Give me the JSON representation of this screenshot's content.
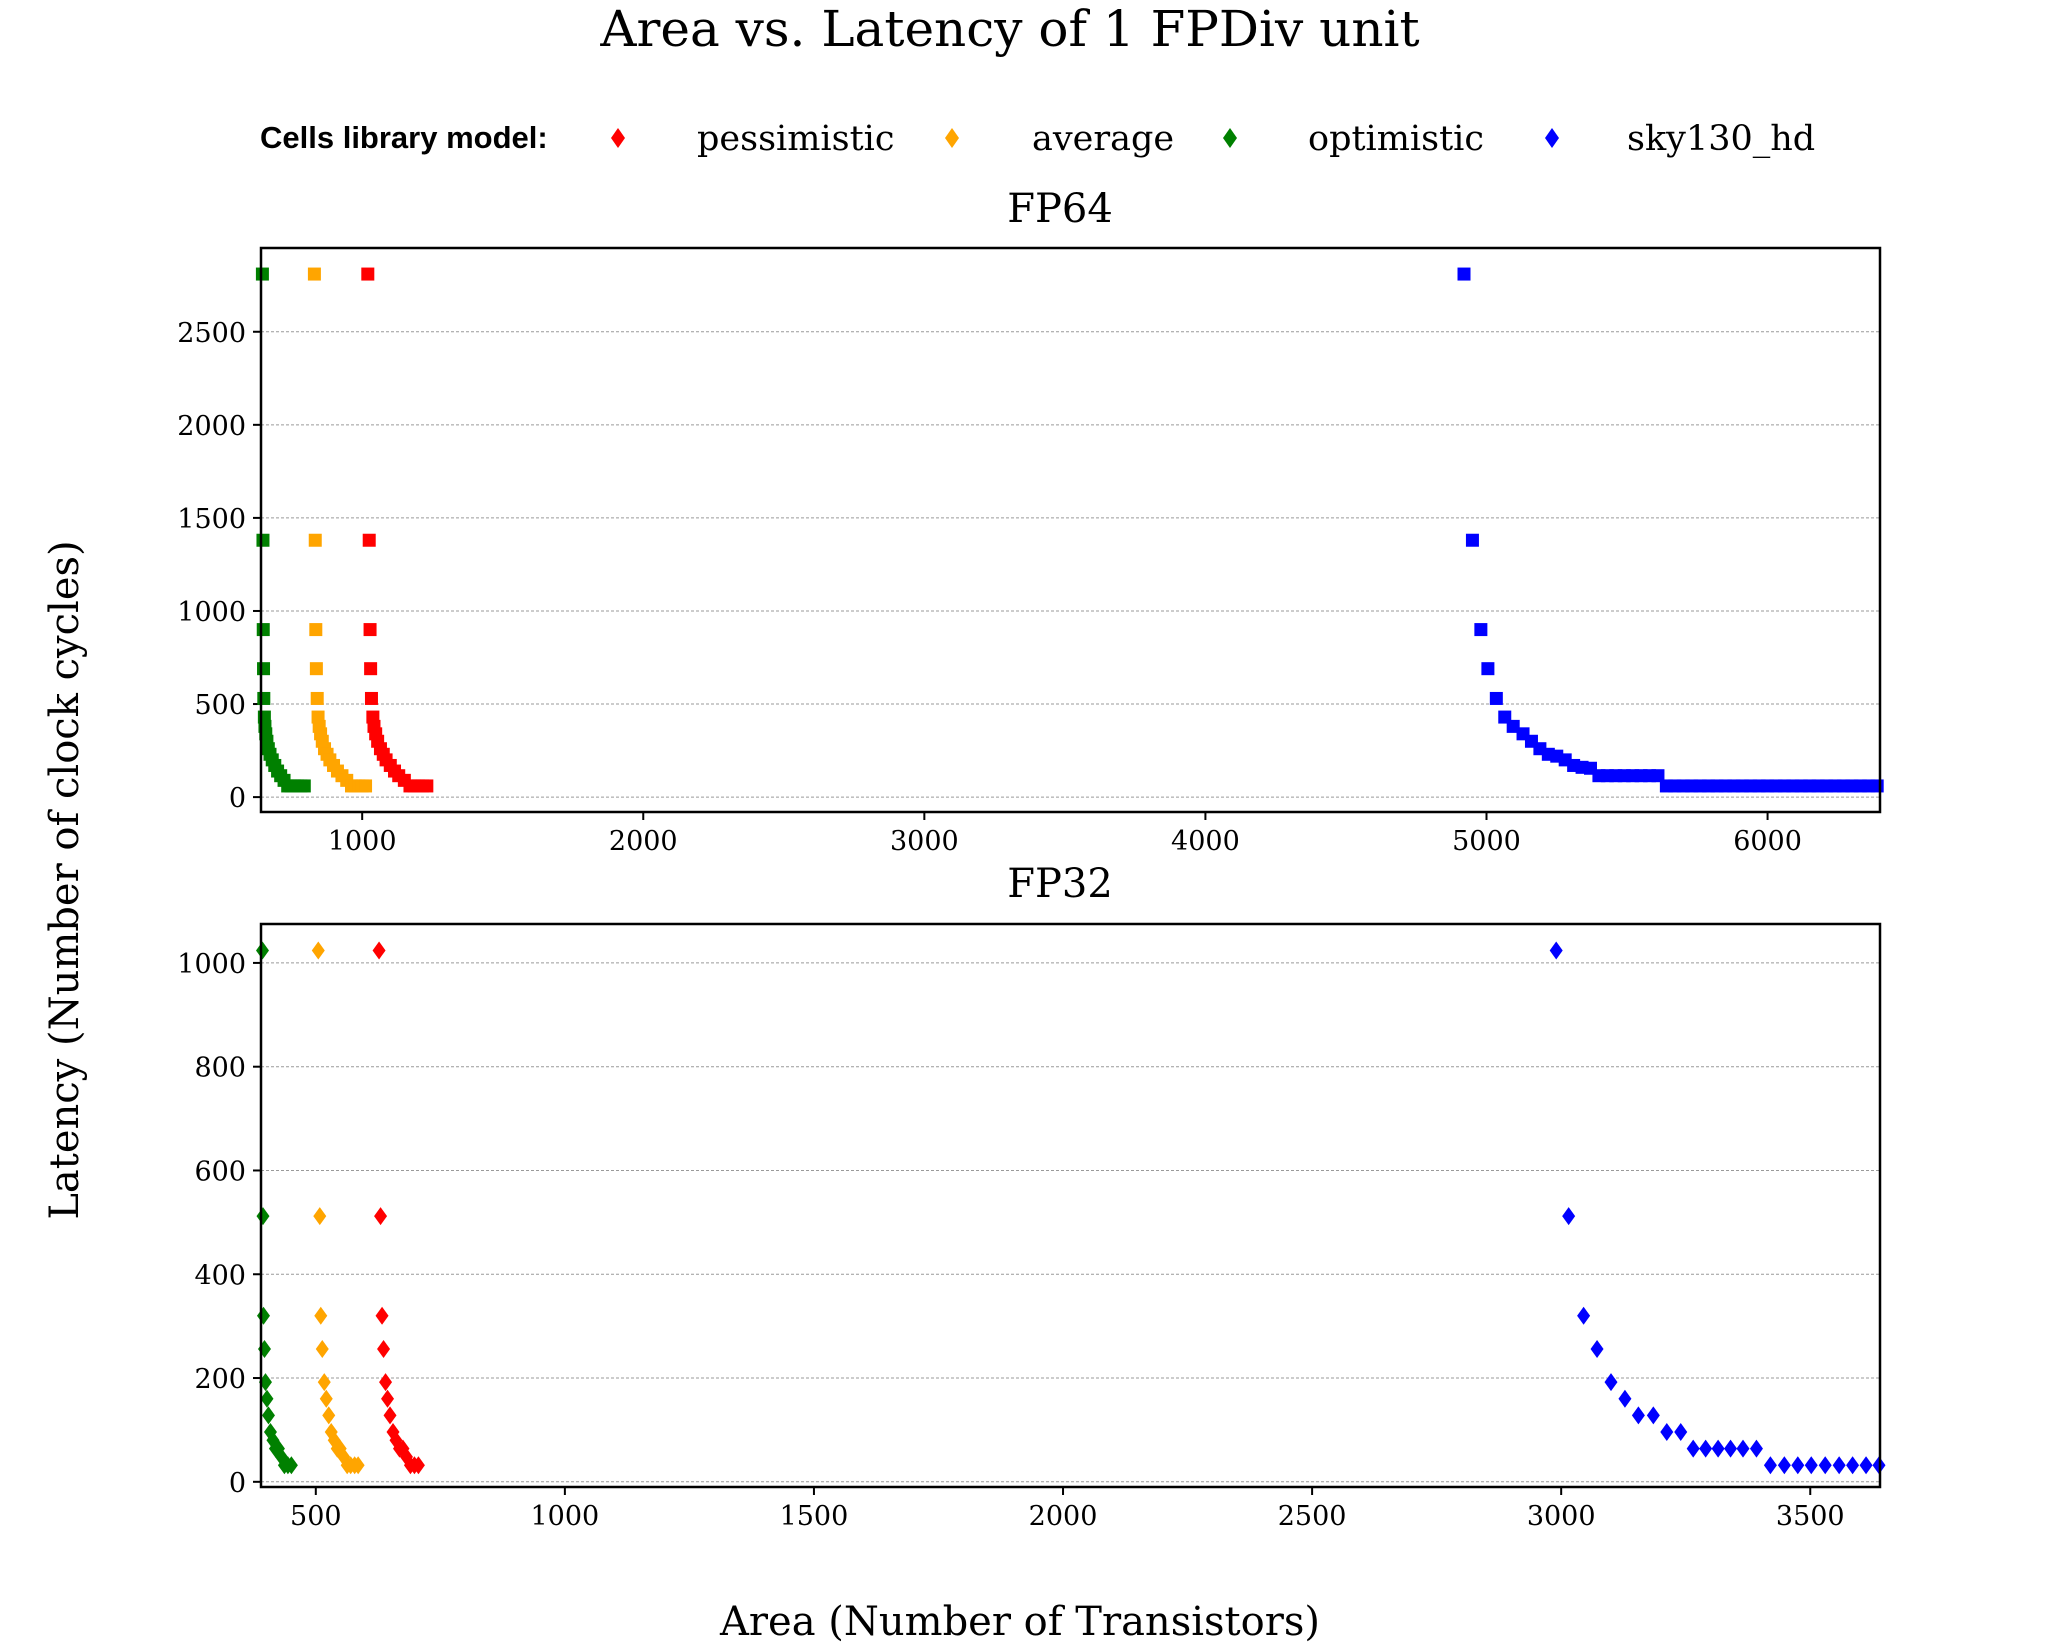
{
  "figure": {
    "title": "Area vs. Latency of 1 FPDiv unit",
    "xlabel": "Area (Number of Transistors)",
    "ylabel": "Latency (Number of clock cycles)"
  },
  "legend": {
    "title": "Cells library model:",
    "placement": "top",
    "entries": [
      {
        "name": "pessimistic",
        "color": "#ff0000"
      },
      {
        "name": "average",
        "color": "#ffa500"
      },
      {
        "name": "optimistic",
        "color": "#008000"
      },
      {
        "name": "sky130_hd",
        "color": "#0000ff"
      }
    ]
  },
  "chart_data": [
    {
      "type": "scatter",
      "title": "FP64",
      "marker": "square",
      "xlim": [
        640,
        6400
      ],
      "ylim": [
        -80,
        2950
      ],
      "xticks": [
        1000,
        2000,
        3000,
        4000,
        5000,
        6000
      ],
      "yticks": [
        0,
        500,
        1000,
        1500,
        2000,
        2500
      ],
      "grid": "y",
      "series": [
        {
          "name": "pessimistic",
          "color": "#ff0000",
          "points": [
            [
              1020,
              2810
            ],
            [
              1025,
              1380
            ],
            [
              1028,
              900
            ],
            [
              1030,
              690
            ],
            [
              1033,
              530
            ],
            [
              1038,
              430
            ],
            [
              1042,
              380
            ],
            [
              1048,
              340
            ],
            [
              1055,
              300
            ],
            [
              1065,
              260
            ],
            [
              1075,
              230
            ],
            [
              1085,
              200
            ],
            [
              1100,
              170
            ],
            [
              1115,
              140
            ],
            [
              1130,
              115
            ],
            [
              1150,
              90
            ],
            [
              1170,
              60
            ],
            [
              1185,
              60
            ],
            [
              1200,
              60
            ],
            [
              1215,
              60
            ],
            [
              1230,
              60
            ]
          ]
        },
        {
          "name": "average",
          "color": "#ffa500",
          "points": [
            [
              830,
              2810
            ],
            [
              833,
              1380
            ],
            [
              835,
              900
            ],
            [
              837,
              690
            ],
            [
              840,
              530
            ],
            [
              843,
              430
            ],
            [
              847,
              380
            ],
            [
              852,
              340
            ],
            [
              858,
              300
            ],
            [
              866,
              260
            ],
            [
              875,
              230
            ],
            [
              885,
              200
            ],
            [
              898,
              170
            ],
            [
              912,
              140
            ],
            [
              928,
              115
            ],
            [
              945,
              90
            ],
            [
              962,
              60
            ],
            [
              975,
              60
            ],
            [
              988,
              60
            ],
            [
              1000,
              60
            ],
            [
              1012,
              60
            ]
          ]
        },
        {
          "name": "optimistic",
          "color": "#008000",
          "points": [
            [
              645,
              2810
            ],
            [
              647,
              1380
            ],
            [
              648,
              900
            ],
            [
              649,
              690
            ],
            [
              650,
              530
            ],
            [
              652,
              430
            ],
            [
              654,
              380
            ],
            [
              657,
              340
            ],
            [
              661,
              300
            ],
            [
              666,
              260
            ],
            [
              672,
              230
            ],
            [
              680,
              200
            ],
            [
              689,
              170
            ],
            [
              699,
              140
            ],
            [
              710,
              115
            ],
            [
              722,
              90
            ],
            [
              735,
              60
            ],
            [
              747,
              60
            ],
            [
              759,
              60
            ],
            [
              770,
              60
            ],
            [
              782,
              60
            ],
            [
              794,
              60
            ]
          ]
        },
        {
          "name": "sky130_hd",
          "color": "#0000ff",
          "points": [
            [
              4920,
              2810
            ],
            [
              4950,
              1380
            ],
            [
              4980,
              900
            ],
            [
              5005,
              690
            ],
            [
              5035,
              530
            ],
            [
              5065,
              430
            ],
            [
              5095,
              380
            ],
            [
              5130,
              340
            ],
            [
              5160,
              300
            ],
            [
              5190,
              260
            ],
            [
              5220,
              230
            ],
            [
              5250,
              220
            ],
            [
              5280,
              200
            ],
            [
              5310,
              170
            ],
            [
              5340,
              160
            ],
            [
              5370,
              155
            ],
            [
              5400,
              115
            ],
            [
              5430,
              115
            ],
            [
              5460,
              115
            ],
            [
              5490,
              115
            ],
            [
              5520,
              115
            ],
            [
              5550,
              115
            ],
            [
              5580,
              115
            ],
            [
              5610,
              115
            ],
            [
              5640,
              60
            ],
            [
              5670,
              60
            ],
            [
              5700,
              60
            ],
            [
              5730,
              60
            ],
            [
              5760,
              60
            ],
            [
              5790,
              60
            ],
            [
              5820,
              60
            ],
            [
              5850,
              60
            ],
            [
              5880,
              60
            ],
            [
              5910,
              60
            ],
            [
              5940,
              60
            ],
            [
              5970,
              60
            ],
            [
              6000,
              60
            ],
            [
              6030,
              60
            ],
            [
              6060,
              60
            ],
            [
              6090,
              60
            ],
            [
              6120,
              60
            ],
            [
              6150,
              60
            ],
            [
              6180,
              60
            ],
            [
              6210,
              60
            ],
            [
              6240,
              60
            ],
            [
              6270,
              60
            ],
            [
              6300,
              60
            ],
            [
              6330,
              60
            ],
            [
              6360,
              60
            ],
            [
              6390,
              60
            ]
          ]
        }
      ]
    },
    {
      "type": "scatter",
      "title": "FP32",
      "marker": "diamond",
      "xlim": [
        390,
        3640
      ],
      "ylim": [
        -10,
        1075
      ],
      "xticks": [
        500,
        1000,
        1500,
        2000,
        2500,
        3000,
        3500
      ],
      "yticks": [
        0,
        200,
        400,
        600,
        800,
        1000
      ],
      "grid": "y",
      "series": [
        {
          "name": "pessimistic",
          "color": "#ff0000",
          "points": [
            [
              627,
              1024
            ],
            [
              630,
              512
            ],
            [
              633,
              320
            ],
            [
              636,
              256
            ],
            [
              640,
              192
            ],
            [
              644,
              160
            ],
            [
              649,
              128
            ],
            [
              655,
              96
            ],
            [
              661,
              80
            ],
            [
              668,
              64
            ],
            [
              675,
              64
            ],
            [
              682,
              48
            ],
            [
              690,
              32
            ],
            [
              698,
              32
            ],
            [
              706,
              32
            ]
          ]
        },
        {
          "name": "average",
          "color": "#ffa500",
          "points": [
            [
              505,
              1024
            ],
            [
              508,
              512
            ],
            [
              510,
              320
            ],
            [
              513,
              256
            ],
            [
              517,
              192
            ],
            [
              521,
              160
            ],
            [
              526,
              128
            ],
            [
              531,
              96
            ],
            [
              537,
              80
            ],
            [
              543,
              64
            ],
            [
              549,
              64
            ],
            [
              556,
              48
            ],
            [
              563,
              32
            ],
            [
              570,
              32
            ],
            [
              578,
              32
            ],
            [
              585,
              32
            ]
          ]
        },
        {
          "name": "optimistic",
          "color": "#008000",
          "points": [
            [
              393,
              1024
            ],
            [
              394,
              512
            ],
            [
              395,
              320
            ],
            [
              397,
              256
            ],
            [
              399,
              192
            ],
            [
              402,
              160
            ],
            [
              405,
              128
            ],
            [
              409,
              96
            ],
            [
              414,
              80
            ],
            [
              419,
              64
            ],
            [
              425,
              64
            ],
            [
              431,
              48
            ],
            [
              437,
              32
            ],
            [
              444,
              32
            ],
            [
              451,
              32
            ]
          ]
        },
        {
          "name": "sky130_hd",
          "color": "#0000ff",
          "points": [
            [
              2990,
              1024
            ],
            [
              3015,
              512
            ],
            [
              3045,
              320
            ],
            [
              3072,
              256
            ],
            [
              3100,
              192
            ],
            [
              3128,
              160
            ],
            [
              3155,
              128
            ],
            [
              3185,
              128
            ],
            [
              3212,
              96
            ],
            [
              3240,
              96
            ],
            [
              3265,
              64
            ],
            [
              3290,
              64
            ],
            [
              3315,
              64
            ],
            [
              3340,
              64
            ],
            [
              3365,
              64
            ],
            [
              3392,
              64
            ],
            [
              3420,
              32
            ],
            [
              3448,
              32
            ],
            [
              3475,
              32
            ],
            [
              3502,
              32
            ],
            [
              3530,
              32
            ],
            [
              3558,
              32
            ],
            [
              3585,
              32
            ],
            [
              3612,
              32
            ],
            [
              3638,
              32
            ]
          ]
        }
      ]
    }
  ]
}
